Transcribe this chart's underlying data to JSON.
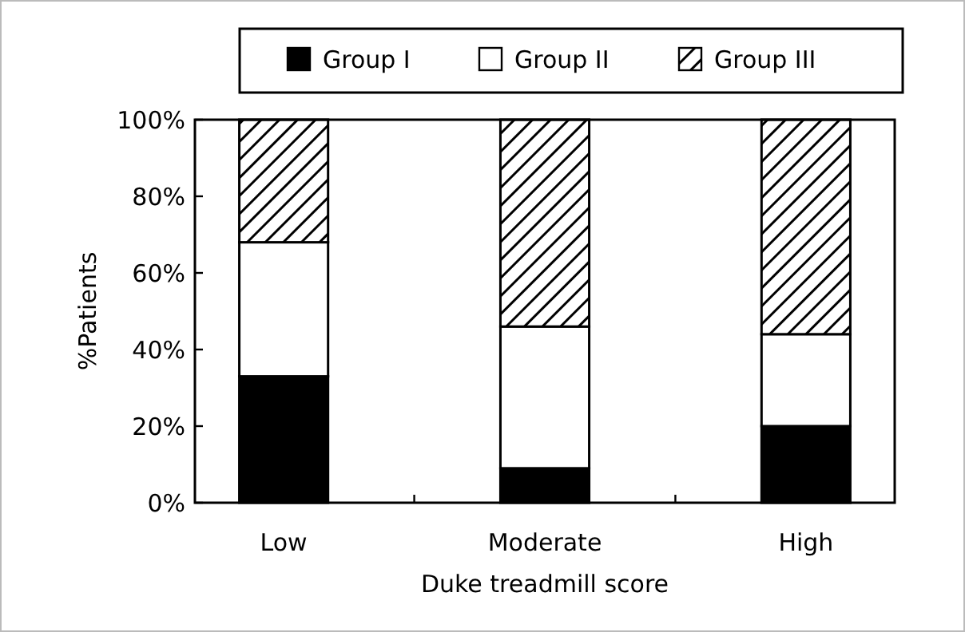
{
  "chart_data": {
    "type": "bar",
    "stacked": true,
    "xlabel": "Duke treadmill score",
    "ylabel": "%Patients",
    "categories": [
      "Low",
      "Moderate",
      "High"
    ],
    "series": [
      {
        "name": "Group I",
        "color": "#000000",
        "values": [
          33,
          9,
          20
        ]
      },
      {
        "name": "Group II",
        "color": "#ffffff",
        "values": [
          35,
          37,
          24
        ]
      },
      {
        "name": "Group III",
        "color": "#000000",
        "values": [
          32,
          54,
          56
        ]
      }
    ],
    "ylim": [
      0,
      100
    ],
    "yticks": [
      {
        "value": 0,
        "label": "0%"
      },
      {
        "value": 20,
        "label": "20%"
      },
      {
        "value": 40,
        "label": "40%"
      },
      {
        "value": 60,
        "label": "60%"
      },
      {
        "value": 80,
        "label": "80%"
      },
      {
        "value": 100,
        "label": "100%"
      }
    ],
    "legend": "top",
    "grid": false
  }
}
